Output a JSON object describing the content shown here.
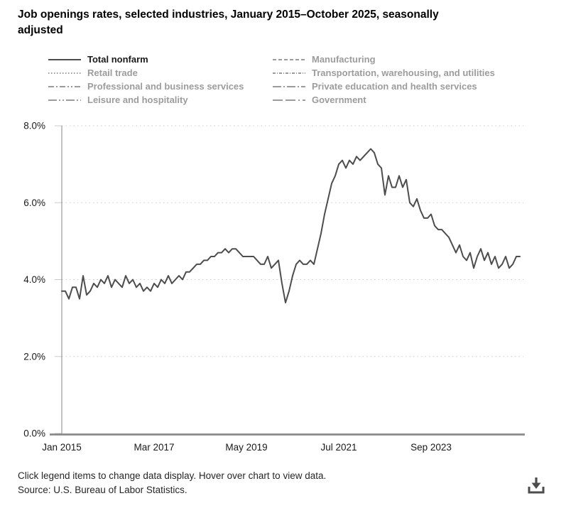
{
  "title": "Job openings rates, selected industries, January 2015–October 2025, seasonally adjusted",
  "legend": {
    "columns": [
      [
        {
          "label": "Total nonfarm",
          "dash": "",
          "active": true
        },
        {
          "label": "Retail trade",
          "dash": "1.5,2.5",
          "active": false
        },
        {
          "label": "Professional and business services",
          "dash": "8,3,2,3,8,3,2,3,2,3",
          "active": false
        },
        {
          "label": "Leisure and hospitality",
          "dash": "12,3,2,3,2,3",
          "active": false
        }
      ],
      [
        {
          "label": "Manufacturing",
          "dash": "5,3",
          "active": false
        },
        {
          "label": "Transportation, warehousing, and utilities",
          "dash": "4,2,1,2",
          "active": false
        },
        {
          "label": "Private education and health services",
          "dash": "12,3,2,3",
          "active": false
        },
        {
          "label": "Government",
          "dash": "14,4,14,4,2,4",
          "active": false
        }
      ]
    ]
  },
  "chart_data": {
    "type": "line",
    "title": "Job openings rates, selected industries, January 2015–October 2025, seasonally adjusted",
    "x_start": "Jan 2015",
    "x_end": "Oct 2025",
    "x_unit": "month",
    "x_tick_labels": [
      "Jan 2015",
      "Mar 2017",
      "May 2019",
      "Jul 2021",
      "Sep 2023"
    ],
    "x_tick_positions": [
      0,
      26,
      52,
      78,
      104
    ],
    "y_tick_labels": [
      "0.0%",
      "2.0%",
      "4.0%",
      "6.0%",
      "8.0%"
    ],
    "y_ticks": [
      0,
      2,
      4,
      6,
      8
    ],
    "ylim": [
      0,
      8
    ],
    "grid": "dotted-horizontal",
    "legend_position": "top",
    "series": [
      {
        "name": "Total nonfarm",
        "values": [
          3.7,
          3.7,
          3.5,
          3.8,
          3.8,
          3.5,
          4.1,
          3.6,
          3.7,
          3.9,
          3.8,
          4.0,
          3.9,
          4.1,
          3.8,
          4.0,
          3.9,
          3.8,
          4.1,
          3.9,
          4.0,
          3.8,
          3.9,
          3.7,
          3.8,
          3.7,
          3.9,
          3.8,
          4.0,
          3.9,
          4.1,
          3.9,
          4.0,
          4.1,
          4.0,
          4.2,
          4.2,
          4.3,
          4.4,
          4.4,
          4.5,
          4.5,
          4.6,
          4.6,
          4.7,
          4.7,
          4.8,
          4.7,
          4.8,
          4.8,
          4.7,
          4.6,
          4.6,
          4.6,
          4.6,
          4.5,
          4.4,
          4.4,
          4.6,
          4.3,
          4.4,
          4.5,
          3.9,
          3.4,
          3.7,
          4.1,
          4.4,
          4.5,
          4.4,
          4.4,
          4.5,
          4.4,
          4.8,
          5.2,
          5.7,
          6.1,
          6.5,
          6.7,
          7.0,
          7.1,
          6.9,
          7.1,
          7.0,
          7.2,
          7.1,
          7.2,
          7.3,
          7.4,
          7.3,
          7.0,
          6.9,
          6.2,
          6.7,
          6.4,
          6.4,
          6.7,
          6.4,
          6.6,
          6.0,
          5.9,
          6.1,
          5.8,
          5.6,
          5.6,
          5.7,
          5.4,
          5.3,
          5.3,
          5.2,
          5.1,
          4.9,
          4.7,
          4.9,
          4.6,
          4.5,
          4.7,
          4.3,
          4.6,
          4.8,
          4.5,
          4.7,
          4.4,
          4.6,
          4.3,
          4.4,
          4.6,
          4.3,
          4.4,
          4.6,
          4.6
        ]
      }
    ]
  },
  "colors": {
    "series_line": "#4d4d4d",
    "legend_inactive": "#9c9c9c",
    "legend_active_text": "#1a1a1a",
    "grid": "#cbcbcb",
    "y_axis": "#999999",
    "x_axis": "#8a8a8a",
    "tick_text": "#1a1a1a",
    "icon": "#4d4d4d"
  },
  "footer": {
    "hint": "Click legend items to change data display. Hover over chart to view data.",
    "source": "Source: U.S. Bureau of Labor Statistics."
  },
  "icons": {
    "download": "arrow-down-to-bar"
  }
}
